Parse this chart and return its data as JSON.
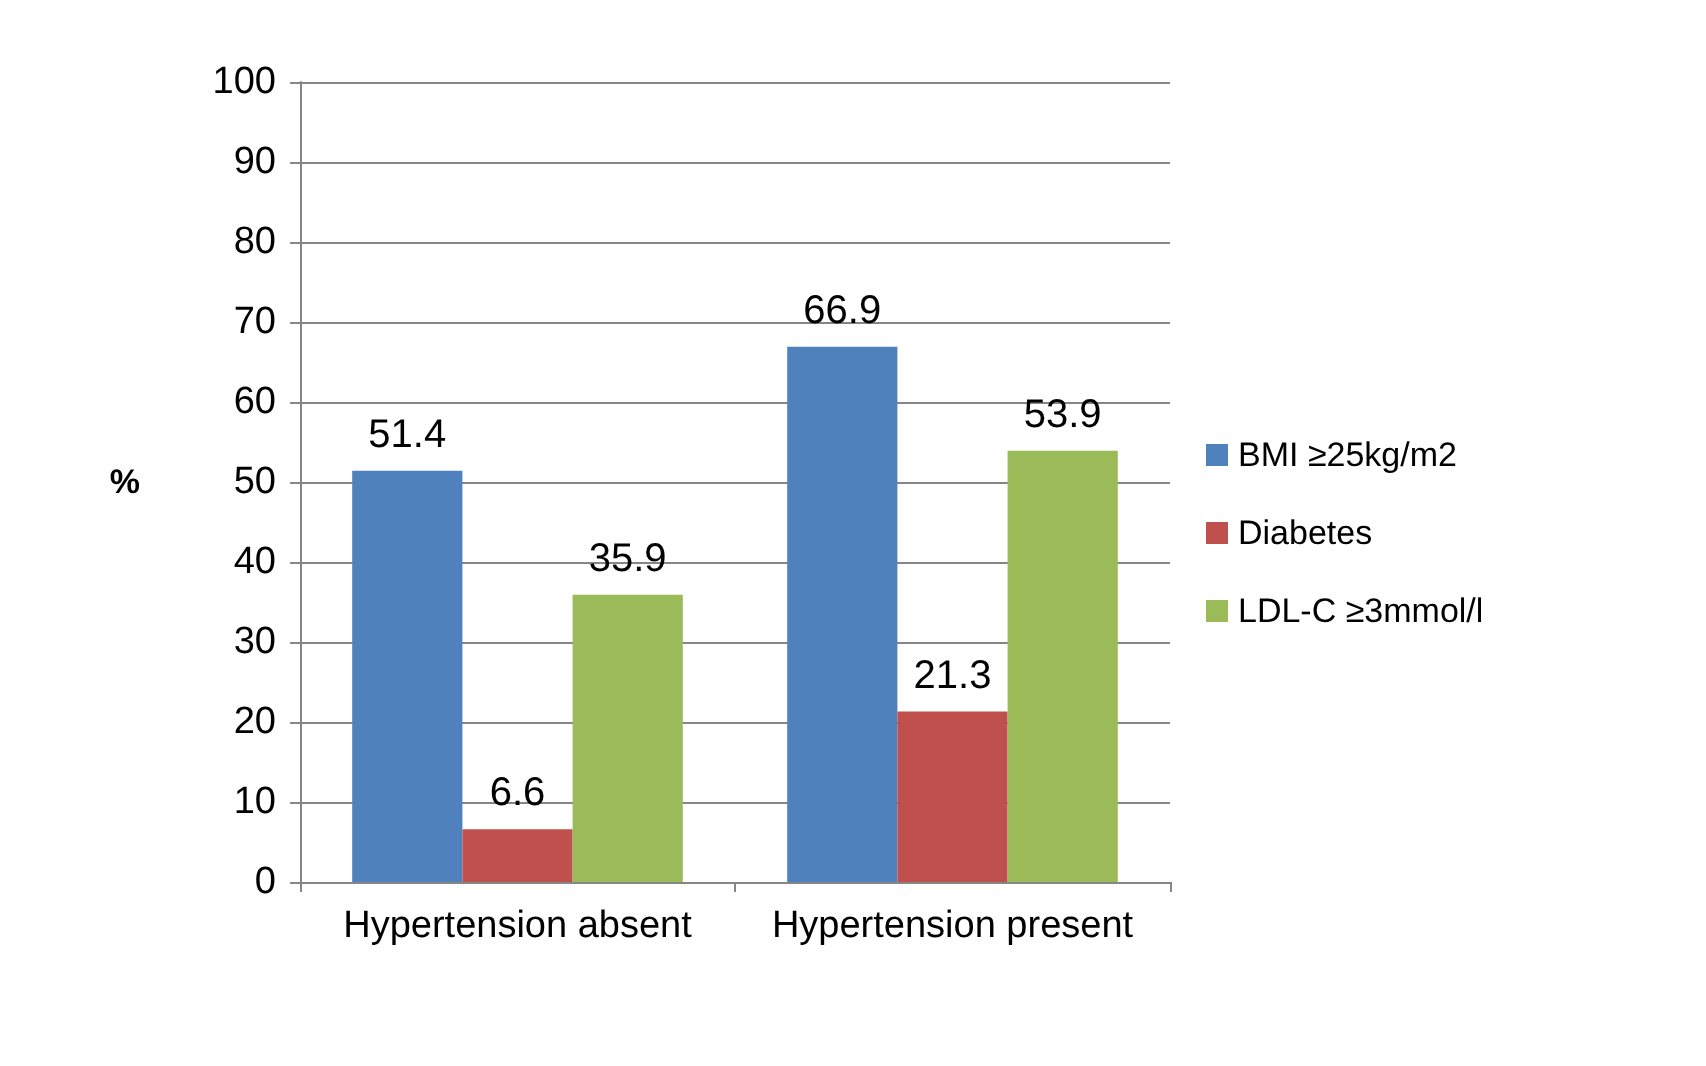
{
  "chart_data": {
    "type": "bar",
    "ylabel": "%",
    "categories": [
      "Hypertension absent",
      "Hypertension present"
    ],
    "series": [
      {
        "name": "BMI ≥25kg/m2",
        "color": "#4f81bd",
        "values": [
          51.4,
          66.9
        ]
      },
      {
        "name": "Diabetes",
        "color": "#c0504d",
        "values": [
          6.6,
          21.3
        ]
      },
      {
        "name": "LDL-C ≥3mmol/l",
        "color": "#9bbb59",
        "values": [
          35.9,
          53.9
        ]
      }
    ],
    "ylim": [
      0,
      100
    ],
    "yticks": [
      0,
      10,
      20,
      30,
      40,
      50,
      60,
      70,
      80,
      90,
      100
    ],
    "grid": "y",
    "legend": "right",
    "data_labels": true
  }
}
